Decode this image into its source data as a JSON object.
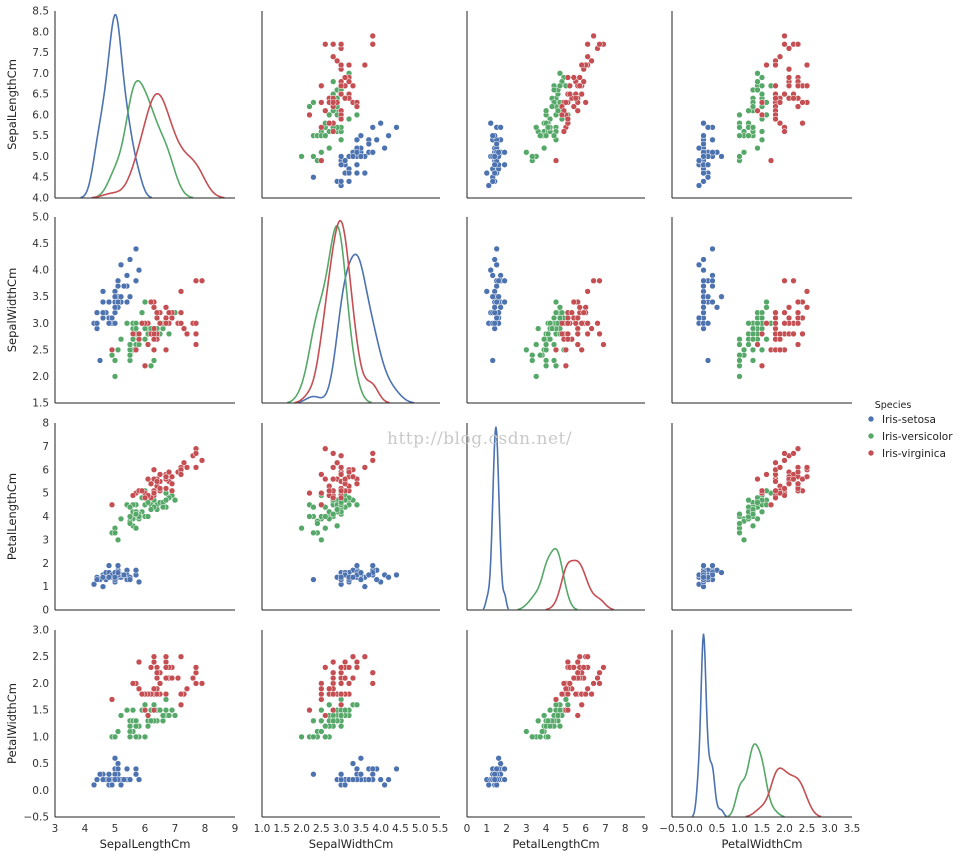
{
  "chart_data": {
    "type": "scatter",
    "title": "",
    "variables": [
      "SepalLengthCm",
      "SepalWidthCm",
      "PetalLengthCm",
      "PetalWidthCm"
    ],
    "axes": {
      "SepalLengthCm": {
        "range": [
          3,
          9
        ],
        "ticks": [
          "3",
          "4",
          "5",
          "6",
          "7",
          "8",
          "9"
        ],
        "ylim": [
          4.0,
          8.5
        ],
        "yticks": [
          "4.0",
          "4.5",
          "5.0",
          "5.5",
          "6.0",
          "6.5",
          "7.0",
          "7.5",
          "8.0",
          "8.5"
        ]
      },
      "SepalWidthCm": {
        "range": [
          1.0,
          5.5
        ],
        "ticks": [
          "1.0",
          "1.5",
          "2.0",
          "2.5",
          "3.0",
          "3.5",
          "4.0",
          "4.5",
          "5.0",
          "5.5"
        ],
        "ylim": [
          1.5,
          5.0
        ],
        "yticks": [
          "1.5",
          "2.0",
          "2.5",
          "3.0",
          "3.5",
          "4.0",
          "4.5",
          "5.0"
        ]
      },
      "PetalLengthCm": {
        "range": [
          0,
          9
        ],
        "ticks": [
          "0",
          "1",
          "2",
          "3",
          "4",
          "5",
          "6",
          "7",
          "8",
          "9"
        ],
        "ylim": [
          0,
          8
        ],
        "yticks": [
          "0",
          "1",
          "2",
          "3",
          "4",
          "5",
          "6",
          "7",
          "8"
        ]
      },
      "PetalWidthCm": {
        "range": [
          -0.5,
          3.5
        ],
        "ticks": [
          "−0.5",
          "0.0",
          "0.5",
          "1.0",
          "1.5",
          "2.0",
          "2.5",
          "3.0",
          "3.5"
        ],
        "ylim": [
          -0.5,
          3.0
        ],
        "yticks": [
          "−0.5",
          "0.0",
          "0.5",
          "1.0",
          "1.5",
          "2.0",
          "2.5",
          "3.0"
        ]
      }
    },
    "legend": {
      "title": "Species",
      "placement": "right",
      "entries": [
        "Iris-setosa",
        "Iris-versicolor",
        "Iris-virginica"
      ]
    },
    "series": [
      {
        "name": "Iris-setosa",
        "color": "#4c72b0",
        "points": [
          [
            5.1,
            3.5,
            1.4,
            0.2
          ],
          [
            4.9,
            3.0,
            1.4,
            0.2
          ],
          [
            4.7,
            3.2,
            1.3,
            0.2
          ],
          [
            4.6,
            3.1,
            1.5,
            0.2
          ],
          [
            5.0,
            3.6,
            1.4,
            0.2
          ],
          [
            5.4,
            3.9,
            1.7,
            0.4
          ],
          [
            4.6,
            3.4,
            1.4,
            0.3
          ],
          [
            5.0,
            3.4,
            1.5,
            0.2
          ],
          [
            4.4,
            2.9,
            1.4,
            0.2
          ],
          [
            4.9,
            3.1,
            1.5,
            0.1
          ],
          [
            5.4,
            3.7,
            1.5,
            0.2
          ],
          [
            4.8,
            3.4,
            1.6,
            0.2
          ],
          [
            4.8,
            3.0,
            1.4,
            0.1
          ],
          [
            4.3,
            3.0,
            1.1,
            0.1
          ],
          [
            5.8,
            4.0,
            1.2,
            0.2
          ],
          [
            5.7,
            4.4,
            1.5,
            0.4
          ],
          [
            5.4,
            3.9,
            1.3,
            0.4
          ],
          [
            5.1,
            3.5,
            1.4,
            0.3
          ],
          [
            5.7,
            3.8,
            1.7,
            0.3
          ],
          [
            5.1,
            3.8,
            1.5,
            0.3
          ],
          [
            5.4,
            3.4,
            1.7,
            0.2
          ],
          [
            5.1,
            3.7,
            1.5,
            0.4
          ],
          [
            4.6,
            3.6,
            1.0,
            0.2
          ],
          [
            5.1,
            3.3,
            1.7,
            0.5
          ],
          [
            4.8,
            3.4,
            1.9,
            0.2
          ],
          [
            5.0,
            3.0,
            1.6,
            0.2
          ],
          [
            5.0,
            3.4,
            1.6,
            0.4
          ],
          [
            5.2,
            3.5,
            1.5,
            0.2
          ],
          [
            5.2,
            3.4,
            1.4,
            0.2
          ],
          [
            4.7,
            3.2,
            1.6,
            0.2
          ],
          [
            4.8,
            3.1,
            1.6,
            0.2
          ],
          [
            5.4,
            3.4,
            1.5,
            0.4
          ],
          [
            5.2,
            4.1,
            1.5,
            0.1
          ],
          [
            5.5,
            4.2,
            1.4,
            0.2
          ],
          [
            4.9,
            3.1,
            1.5,
            0.1
          ],
          [
            5.0,
            3.2,
            1.2,
            0.2
          ],
          [
            5.5,
            3.5,
            1.3,
            0.2
          ],
          [
            4.9,
            3.1,
            1.5,
            0.1
          ],
          [
            4.4,
            3.0,
            1.3,
            0.2
          ],
          [
            5.1,
            3.4,
            1.5,
            0.2
          ],
          [
            5.0,
            3.5,
            1.3,
            0.3
          ],
          [
            4.5,
            2.3,
            1.3,
            0.3
          ],
          [
            4.4,
            3.2,
            1.3,
            0.2
          ],
          [
            5.0,
            3.5,
            1.6,
            0.6
          ],
          [
            5.1,
            3.8,
            1.9,
            0.4
          ],
          [
            4.8,
            3.0,
            1.4,
            0.3
          ],
          [
            5.1,
            3.8,
            1.6,
            0.2
          ],
          [
            4.6,
            3.2,
            1.4,
            0.2
          ],
          [
            5.3,
            3.7,
            1.5,
            0.2
          ],
          [
            5.0,
            3.3,
            1.4,
            0.2
          ]
        ]
      },
      {
        "name": "Iris-versicolor",
        "color": "#55a868",
        "points": [
          [
            7.0,
            3.2,
            4.7,
            1.4
          ],
          [
            6.4,
            3.2,
            4.5,
            1.5
          ],
          [
            6.9,
            3.1,
            4.9,
            1.5
          ],
          [
            5.5,
            2.3,
            4.0,
            1.3
          ],
          [
            6.5,
            2.8,
            4.6,
            1.5
          ],
          [
            5.7,
            2.8,
            4.5,
            1.3
          ],
          [
            6.3,
            3.3,
            4.7,
            1.6
          ],
          [
            4.9,
            2.4,
            3.3,
            1.0
          ],
          [
            6.6,
            2.9,
            4.6,
            1.3
          ],
          [
            5.2,
            2.7,
            3.9,
            1.4
          ],
          [
            5.0,
            2.0,
            3.5,
            1.0
          ],
          [
            5.9,
            3.0,
            4.2,
            1.5
          ],
          [
            6.0,
            2.2,
            4.0,
            1.0
          ],
          [
            6.1,
            2.9,
            4.7,
            1.4
          ],
          [
            5.6,
            2.9,
            3.6,
            1.3
          ],
          [
            6.7,
            3.1,
            4.4,
            1.4
          ],
          [
            5.6,
            3.0,
            4.5,
            1.5
          ],
          [
            5.8,
            2.7,
            4.1,
            1.0
          ],
          [
            6.2,
            2.2,
            4.5,
            1.5
          ],
          [
            5.6,
            2.5,
            3.9,
            1.1
          ],
          [
            5.9,
            3.2,
            4.8,
            1.8
          ],
          [
            6.1,
            2.8,
            4.0,
            1.3
          ],
          [
            6.3,
            2.5,
            4.9,
            1.5
          ],
          [
            6.1,
            2.8,
            4.7,
            1.2
          ],
          [
            6.4,
            2.9,
            4.3,
            1.3
          ],
          [
            6.6,
            3.0,
            4.4,
            1.4
          ],
          [
            6.8,
            2.8,
            4.8,
            1.4
          ],
          [
            6.7,
            3.0,
            5.0,
            1.7
          ],
          [
            6.0,
            2.9,
            4.5,
            1.5
          ],
          [
            5.7,
            2.6,
            3.5,
            1.0
          ],
          [
            5.5,
            2.4,
            3.8,
            1.1
          ],
          [
            5.5,
            2.4,
            3.7,
            1.0
          ],
          [
            5.8,
            2.7,
            3.9,
            1.2
          ],
          [
            6.0,
            2.7,
            5.1,
            1.6
          ],
          [
            5.4,
            3.0,
            4.5,
            1.5
          ],
          [
            6.0,
            3.4,
            4.5,
            1.6
          ],
          [
            6.7,
            3.1,
            4.7,
            1.5
          ],
          [
            6.3,
            2.3,
            4.4,
            1.3
          ],
          [
            5.6,
            3.0,
            4.1,
            1.3
          ],
          [
            5.5,
            2.5,
            4.0,
            1.3
          ],
          [
            5.5,
            2.6,
            4.4,
            1.2
          ],
          [
            6.1,
            3.0,
            4.6,
            1.4
          ],
          [
            5.8,
            2.6,
            4.0,
            1.2
          ],
          [
            5.0,
            2.3,
            3.3,
            1.0
          ],
          [
            5.6,
            2.7,
            4.2,
            1.3
          ],
          [
            5.7,
            3.0,
            4.2,
            1.2
          ],
          [
            5.7,
            2.9,
            4.2,
            1.3
          ],
          [
            6.2,
            2.9,
            4.3,
            1.3
          ],
          [
            5.1,
            2.5,
            3.0,
            1.1
          ],
          [
            5.7,
            2.8,
            4.1,
            1.3
          ]
        ]
      },
      {
        "name": "Iris-virginica",
        "color": "#c44e52",
        "points": [
          [
            6.3,
            3.3,
            6.0,
            2.5
          ],
          [
            5.8,
            2.7,
            5.1,
            1.9
          ],
          [
            7.1,
            3.0,
            5.9,
            2.1
          ],
          [
            6.3,
            2.9,
            5.6,
            1.8
          ],
          [
            6.5,
            3.0,
            5.8,
            2.2
          ],
          [
            7.6,
            3.0,
            6.6,
            2.1
          ],
          [
            4.9,
            2.5,
            4.5,
            1.7
          ],
          [
            7.3,
            2.9,
            6.3,
            1.8
          ],
          [
            6.7,
            2.5,
            5.8,
            1.8
          ],
          [
            7.2,
            3.6,
            6.1,
            2.5
          ],
          [
            6.5,
            3.2,
            5.1,
            2.0
          ],
          [
            6.4,
            2.7,
            5.3,
            1.9
          ],
          [
            6.8,
            3.0,
            5.5,
            2.1
          ],
          [
            5.7,
            2.5,
            5.0,
            2.0
          ],
          [
            5.8,
            2.8,
            5.1,
            2.4
          ],
          [
            6.4,
            3.2,
            5.3,
            2.3
          ],
          [
            6.5,
            3.0,
            5.5,
            1.8
          ],
          [
            7.7,
            3.8,
            6.7,
            2.2
          ],
          [
            7.7,
            2.6,
            6.9,
            2.3
          ],
          [
            6.0,
            2.2,
            5.0,
            1.5
          ],
          [
            6.9,
            3.2,
            5.7,
            2.3
          ],
          [
            5.6,
            2.8,
            4.9,
            2.0
          ],
          [
            7.7,
            2.8,
            6.7,
            2.0
          ],
          [
            6.3,
            2.7,
            4.9,
            1.8
          ],
          [
            6.7,
            3.3,
            5.7,
            2.1
          ],
          [
            7.2,
            3.2,
            6.0,
            1.8
          ],
          [
            6.2,
            2.8,
            4.8,
            1.8
          ],
          [
            6.1,
            3.0,
            4.9,
            1.8
          ],
          [
            6.4,
            2.8,
            5.6,
            2.1
          ],
          [
            7.2,
            3.0,
            5.8,
            1.6
          ],
          [
            7.4,
            2.8,
            6.1,
            1.9
          ],
          [
            7.9,
            3.8,
            6.4,
            2.0
          ],
          [
            6.4,
            2.8,
            5.6,
            2.2
          ],
          [
            6.3,
            2.8,
            5.1,
            1.5
          ],
          [
            6.1,
            2.6,
            5.6,
            1.4
          ],
          [
            7.7,
            3.0,
            6.1,
            2.3
          ],
          [
            6.3,
            3.4,
            5.6,
            2.4
          ],
          [
            6.4,
            3.1,
            5.5,
            1.8
          ],
          [
            6.0,
            3.0,
            4.8,
            1.8
          ],
          [
            6.9,
            3.1,
            5.4,
            2.1
          ],
          [
            6.7,
            3.1,
            5.6,
            2.4
          ],
          [
            6.9,
            3.1,
            5.1,
            2.3
          ],
          [
            5.8,
            2.7,
            5.1,
            1.9
          ],
          [
            6.8,
            3.2,
            5.9,
            2.3
          ],
          [
            6.7,
            3.3,
            5.7,
            2.5
          ],
          [
            6.7,
            3.0,
            5.2,
            2.3
          ],
          [
            6.3,
            2.5,
            5.0,
            1.9
          ],
          [
            6.5,
            3.0,
            5.2,
            2.0
          ],
          [
            6.2,
            3.4,
            5.4,
            2.3
          ],
          [
            5.9,
            3.0,
            5.1,
            1.8
          ]
        ]
      }
    ],
    "diagonal": "kde",
    "annotation": "http://blog.csdn.net/"
  }
}
